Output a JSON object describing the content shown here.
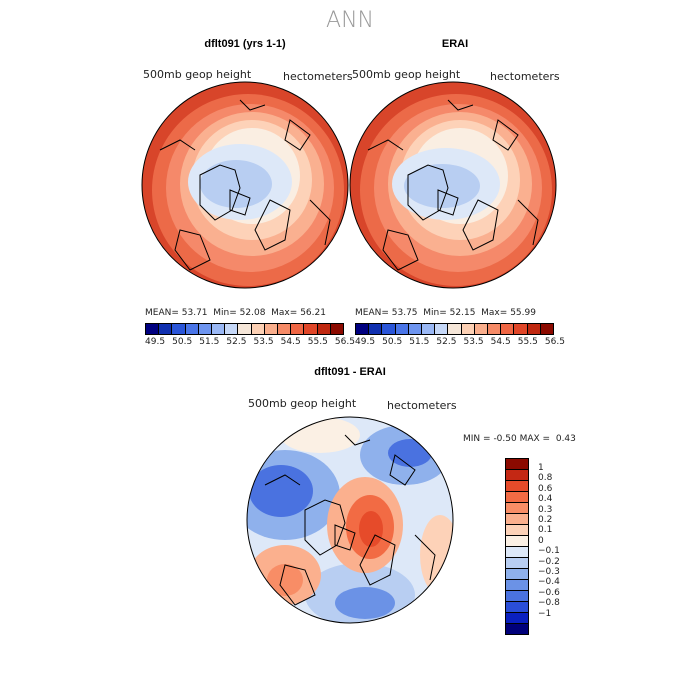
{
  "page": {
    "title": "ANN"
  },
  "panels": [
    {
      "title": "dflt091 (yrs 1-1)",
      "variable": "500mb geop height",
      "units": "hectometers",
      "stats": {
        "mean_label": "MEAN=",
        "mean": "53.71",
        "min_label": "Min=",
        "min": "52.08",
        "max_label": "Max=",
        "max": "56.21"
      }
    },
    {
      "title": "ERAI",
      "variable": "500mb geop height",
      "units": "hectometers",
      "stats": {
        "mean_label": "MEAN=",
        "mean": "53.75",
        "min_label": "Min=",
        "min": "52.15",
        "max_label": "Max=",
        "max": "55.99"
      }
    },
    {
      "title": "dflt091 - ERAI",
      "variable": "500mb geop height",
      "units": "hectometers",
      "stats": {
        "min_label": "MIN =",
        "min": "-0.50",
        "max_label": "MAX =",
        "max": "0.43"
      }
    }
  ],
  "colorbar_top": {
    "colors": [
      "#000080",
      "#1030b0",
      "#2a55d8",
      "#4a75e8",
      "#6e95f0",
      "#9ab8f5",
      "#c6d8f8",
      "#f5e6d8",
      "#fcd0b4",
      "#f9ae8c",
      "#f58a66",
      "#ef6644",
      "#e04628",
      "#c02810",
      "#8b0a00"
    ],
    "labels": [
      "49.5",
      "50.5",
      "51.5",
      "52.5",
      "53.5",
      "54.5",
      "55.5",
      "56.5"
    ]
  },
  "colorbar_diff": {
    "colors": [
      "#8b0a00",
      "#c42814",
      "#e64b2a",
      "#f26b44",
      "#f88d66",
      "#fbb08e",
      "#fdd2b8",
      "#fbf0e4",
      "#dde8f8",
      "#b8cef2",
      "#8fb1ec",
      "#6b92e6",
      "#4a72e0",
      "#2a4ed8",
      "#0a20c0",
      "#00007a"
    ],
    "labels": [
      "1",
      "0.8",
      "0.6",
      "0.4",
      "0.3",
      "0.2",
      "0.1",
      "0",
      "−0.1",
      "−0.2",
      "−0.3",
      "−0.4",
      "−0.6",
      "−0.8",
      "−1"
    ]
  },
  "chart_data": [
    {
      "type": "heatmap",
      "title": "dflt091 (yrs 1-1)",
      "variable": "500mb geop height",
      "units": "hectometers",
      "projection": "north polar stereographic",
      "mean": 53.71,
      "min": 52.08,
      "max": 56.21,
      "contour_levels": [
        49.5,
        50,
        50.5,
        51,
        51.5,
        52,
        52.5,
        53,
        53.5,
        54,
        54.5,
        55,
        55.5,
        56,
        56.5
      ]
    },
    {
      "type": "heatmap",
      "title": "ERAI",
      "variable": "500mb geop height",
      "units": "hectometers",
      "projection": "north polar stereographic",
      "mean": 53.75,
      "min": 52.15,
      "max": 55.99,
      "contour_levels": [
        49.5,
        50,
        50.5,
        51,
        51.5,
        52,
        52.5,
        53,
        53.5,
        54,
        54.5,
        55,
        55.5,
        56,
        56.5
      ]
    },
    {
      "type": "heatmap",
      "title": "dflt091 - ERAI",
      "variable": "500mb geop height",
      "units": "hectometers",
      "projection": "north polar stereographic",
      "min": -0.5,
      "max": 0.43,
      "contour_levels": [
        -1,
        -0.8,
        -0.6,
        -0.4,
        -0.3,
        -0.2,
        -0.1,
        0,
        0.1,
        0.2,
        0.3,
        0.4,
        0.6,
        0.8,
        1
      ]
    }
  ]
}
